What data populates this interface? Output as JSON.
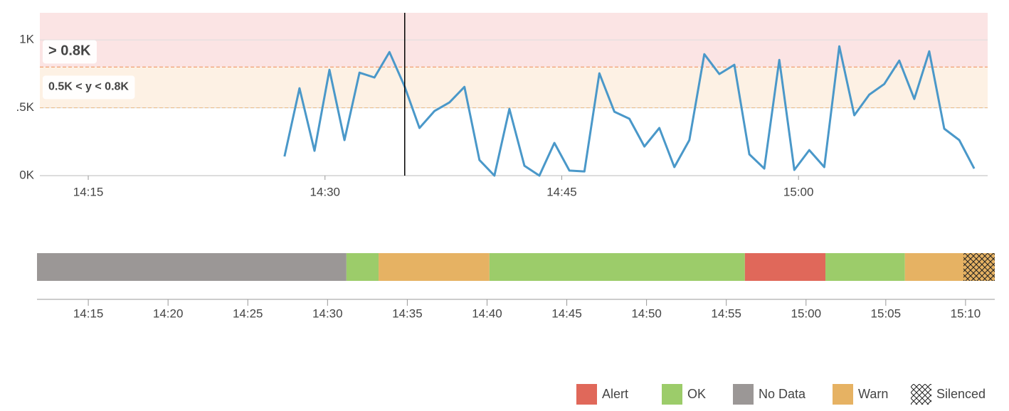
{
  "chart_data": [
    {
      "type": "line",
      "x": [
        "14:27:26",
        "14:28:23",
        "14:29:20",
        "14:30:17",
        "14:31:14",
        "14:32:11",
        "14:33:08",
        "14:34:05",
        "14:35:02",
        "14:35:59",
        "14:36:56",
        "14:37:53",
        "14:38:50",
        "14:39:47",
        "14:40:44",
        "14:41:41",
        "14:42:38",
        "14:43:35",
        "14:44:32",
        "14:45:29",
        "14:46:26",
        "14:47:23",
        "14:48:20",
        "14:49:17",
        "14:50:14",
        "14:51:11",
        "14:52:08",
        "14:53:05",
        "14:54:02",
        "14:54:59",
        "14:55:56",
        "14:56:53",
        "14:57:50",
        "14:58:47",
        "14:59:44",
        "15:00:41",
        "15:01:38",
        "15:02:35",
        "15:03:32",
        "15:04:29",
        "15:05:26",
        "15:06:23",
        "15:07:20",
        "15:08:17",
        "15:09:14",
        "15:10:11",
        "15:11:08"
      ],
      "values": [
        141,
        644,
        183,
        780,
        262,
        759,
        723,
        911,
        660,
        351,
        476,
        539,
        654,
        115,
        0,
        492,
        73,
        0,
        241,
        37,
        31,
        754,
        471,
        419,
        215,
        351,
        63,
        262,
        895,
        749,
        817,
        157,
        52,
        853,
        42,
        188,
        63,
        953,
        445,
        597,
        675,
        848,
        565,
        916,
        346,
        262,
        52
      ],
      "color": "#4a98c9",
      "xlim": [
        "14:11:56",
        "15:11:59"
      ],
      "xticks": [
        "14:15",
        "14:30",
        "14:45",
        "15:00"
      ],
      "ylim": [
        0,
        1200
      ],
      "yticks": [
        {
          "value": 0,
          "label": "0K"
        },
        {
          "value": 500,
          "label": ".5K"
        },
        {
          "value": 1000,
          "label": "1K"
        }
      ],
      "grid": true,
      "crosshair": "14:35:03",
      "thresholds": [
        {
          "label": "> 0.8K",
          "from": 800,
          "color": "#e8605a",
          "band": "#fbe4e4"
        },
        {
          "label": "0.5K < y < 0.8K",
          "from": 500,
          "to": 800,
          "color": "#eda24a",
          "band": "#fdf1e4"
        }
      ]
    },
    {
      "type": "timeline",
      "xlim": [
        "14:11:47",
        "15:11:50"
      ],
      "xticks": [
        "14:15",
        "14:20",
        "14:25",
        "14:30",
        "14:35",
        "14:40",
        "14:45",
        "14:50",
        "14:55",
        "15:00",
        "15:05",
        "15:10"
      ],
      "segments": [
        {
          "state": "No Data",
          "start": "14:11:47",
          "end": "14:31:11"
        },
        {
          "state": "OK",
          "start": "14:31:11",
          "end": "14:33:12"
        },
        {
          "state": "Warn",
          "start": "14:33:12",
          "end": "14:40:09"
        },
        {
          "state": "OK",
          "start": "14:40:09",
          "end": "14:56:10"
        },
        {
          "state": "Alert",
          "start": "14:56:10",
          "end": "15:01:13"
        },
        {
          "state": "OK",
          "start": "15:01:13",
          "end": "15:06:12"
        },
        {
          "state": "Warn",
          "start": "15:06:12",
          "end": "15:11:50"
        }
      ],
      "silenced": [
        {
          "start": "15:09:52",
          "end": "15:11:50"
        }
      ],
      "legend": [
        {
          "name": "Alert",
          "color": "#e0685a"
        },
        {
          "name": "OK",
          "color": "#9ccc6a"
        },
        {
          "name": "No Data",
          "color": "#9b9796"
        },
        {
          "name": "Warn",
          "color": "#e6b263"
        },
        {
          "name": "Silenced",
          "pattern": "hatch"
        }
      ]
    }
  ]
}
